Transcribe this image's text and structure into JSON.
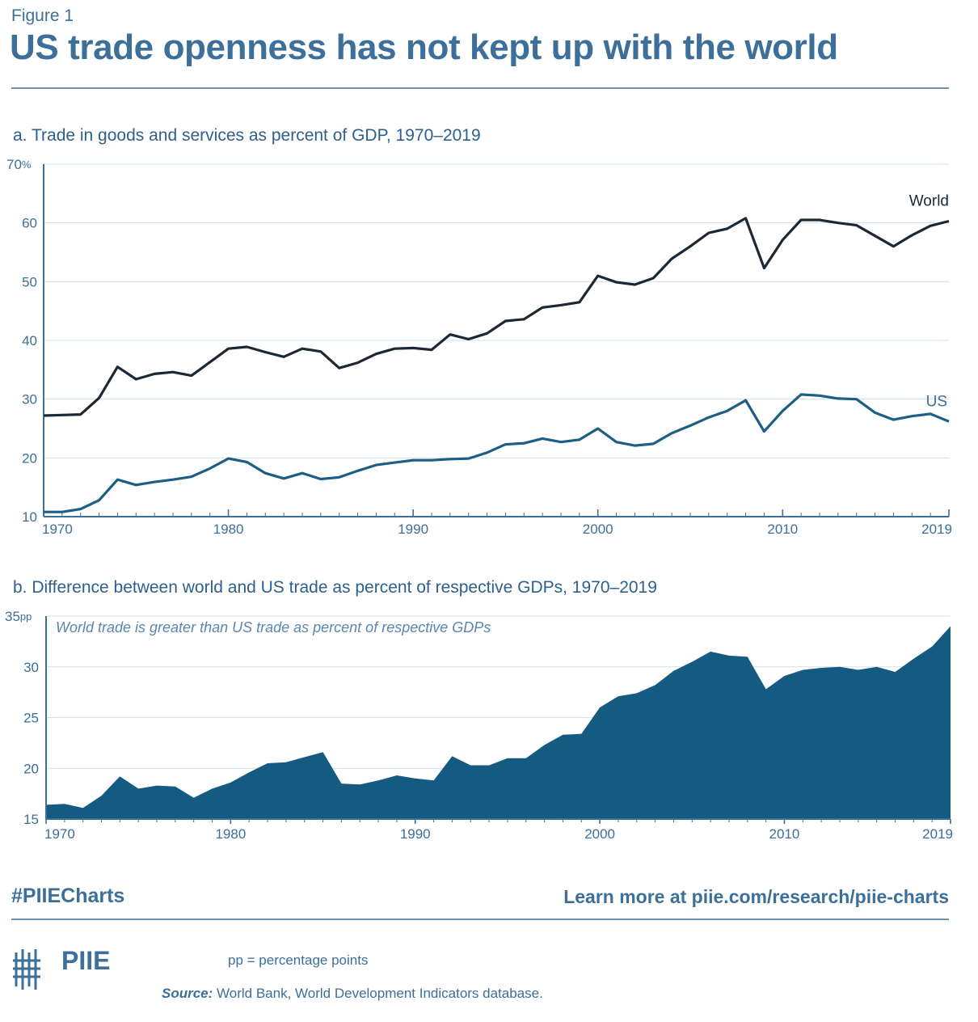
{
  "header": {
    "figure_label": "Figure 1",
    "title": "US trade openness has not kept up with the world"
  },
  "colors": {
    "title": "#3c6f99",
    "world_line": "#1c2833",
    "us_line": "#1d5e84",
    "area_fill": "#155a80",
    "gridline": "#d3e0ea",
    "axis": "#3c6f99"
  },
  "chart_data": [
    {
      "id": "panel_a",
      "type": "line",
      "title": "a. Trade in goods and services as percent of GDP, 1970–2019",
      "xlabel": "",
      "ylabel": "",
      "y_unit": "%",
      "xlim": [
        1970,
        2019
      ],
      "ylim": [
        10,
        70
      ],
      "y_ticks": [
        10,
        20,
        30,
        40,
        50,
        60,
        70
      ],
      "x_ticks": [
        1970,
        1980,
        1990,
        2000,
        2010,
        2019
      ],
      "grid": true,
      "legend": "inline labels at right end of lines",
      "x": [
        1970,
        1971,
        1972,
        1973,
        1974,
        1975,
        1976,
        1977,
        1978,
        1979,
        1980,
        1981,
        1982,
        1983,
        1984,
        1985,
        1986,
        1987,
        1988,
        1989,
        1990,
        1991,
        1992,
        1993,
        1994,
        1995,
        1996,
        1997,
        1998,
        1999,
        2000,
        2001,
        2002,
        2003,
        2004,
        2005,
        2006,
        2007,
        2008,
        2009,
        2010,
        2011,
        2012,
        2013,
        2014,
        2015,
        2016,
        2017,
        2018,
        2019
      ],
      "series": [
        {
          "name": "World",
          "color": "#1c2833",
          "values": [
            27.2,
            27.3,
            27.4,
            30.2,
            35.5,
            33.4,
            34.3,
            34.6,
            34.0,
            36.3,
            38.6,
            38.9,
            38.0,
            37.2,
            38.6,
            38.1,
            35.3,
            36.2,
            37.7,
            38.6,
            38.7,
            38.4,
            41.0,
            40.2,
            41.2,
            43.3,
            43.6,
            45.6,
            46.0,
            46.5,
            51.0,
            49.9,
            49.5,
            50.6,
            53.9,
            56.0,
            58.3,
            59.0,
            60.8,
            52.3,
            57.1,
            60.5,
            60.5,
            60.0,
            59.6,
            57.8,
            56.0,
            57.9,
            59.5,
            60.3
          ]
        },
        {
          "name": "US",
          "color": "#1d5e84",
          "values": [
            10.8,
            10.8,
            11.3,
            12.8,
            16.3,
            15.4,
            15.9,
            16.3,
            16.8,
            18.2,
            19.9,
            19.3,
            17.4,
            16.5,
            17.4,
            16.4,
            16.7,
            17.8,
            18.8,
            19.2,
            19.6,
            19.6,
            19.8,
            19.9,
            20.9,
            22.3,
            22.5,
            23.3,
            22.7,
            23.1,
            25.0,
            22.7,
            22.1,
            22.4,
            24.2,
            25.5,
            26.9,
            28.0,
            29.8,
            24.5,
            28.0,
            30.8,
            30.6,
            30.1,
            30.0,
            27.7,
            26.5,
            27.1,
            27.5,
            26.2
          ]
        }
      ]
    },
    {
      "id": "panel_b",
      "type": "area",
      "title": "b. Difference between world and US trade as percent of respective GDPs, 1970–2019",
      "xlabel": "",
      "ylabel": "",
      "y_unit": "pp",
      "xlim": [
        1970,
        2019
      ],
      "ylim": [
        15,
        35
      ],
      "y_ticks": [
        15,
        20,
        25,
        30,
        35
      ],
      "x_ticks": [
        1970,
        1980,
        1990,
        2000,
        2010,
        2019
      ],
      "grid": true,
      "annotation": "World trade is greater than US trade as percent of respective GDPs",
      "x": [
        1970,
        1971,
        1972,
        1973,
        1974,
        1975,
        1976,
        1977,
        1978,
        1979,
        1980,
        1981,
        1982,
        1983,
        1984,
        1985,
        1986,
        1987,
        1988,
        1989,
        1990,
        1991,
        1992,
        1993,
        1994,
        1995,
        1996,
        1997,
        1998,
        1999,
        2000,
        2001,
        2002,
        2003,
        2004,
        2005,
        2006,
        2007,
        2008,
        2009,
        2010,
        2011,
        2012,
        2013,
        2014,
        2015,
        2016,
        2017,
        2018,
        2019
      ],
      "series": [
        {
          "name": "",
          "color": "#155a80",
          "values": [
            16.4,
            16.5,
            16.1,
            17.3,
            19.2,
            18.0,
            18.3,
            18.2,
            17.1,
            18.0,
            18.6,
            19.6,
            20.5,
            20.6,
            21.1,
            21.6,
            18.5,
            18.4,
            18.8,
            19.3,
            19.0,
            18.8,
            21.2,
            20.3,
            20.3,
            21.0,
            21.0,
            22.3,
            23.3,
            23.4,
            26.0,
            27.1,
            27.4,
            28.2,
            29.6,
            30.5,
            31.5,
            31.1,
            31.0,
            27.8,
            29.1,
            29.7,
            29.9,
            30.0,
            29.7,
            30.0,
            29.5,
            30.8,
            32.0,
            34.0
          ]
        }
      ]
    }
  ],
  "panel_a_labels": {
    "world": "World",
    "us": "US"
  },
  "footer": {
    "hashtag": "#PIIECharts",
    "learn_more": "Learn more at piie.com/research/piie-charts",
    "logo_text": "PIIE",
    "note": "pp = percentage points",
    "source_label": "Source:",
    "source_text": "World Bank, World Development Indicators database."
  }
}
